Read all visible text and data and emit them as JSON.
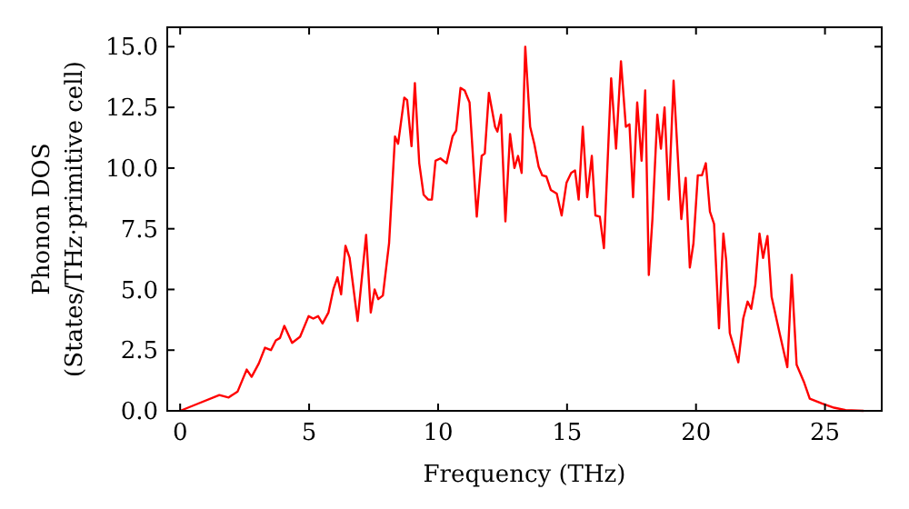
{
  "chart_data": {
    "type": "line",
    "xlabel": "Frequency (THz)",
    "ylabel": "Phonon DOS\n(States/THz·primitive cell)",
    "xlim": [
      -0.5,
      27.2
    ],
    "ylim": [
      0,
      15.8
    ],
    "xticks": [
      0,
      5,
      10,
      15,
      20,
      25
    ],
    "yticks": [
      {
        "value": 0,
        "label": "0.0"
      },
      {
        "value": 2.5,
        "label": "2.5"
      },
      {
        "value": 5,
        "label": "5.0"
      },
      {
        "value": 7.5,
        "label": "7.5"
      },
      {
        "value": 10,
        "label": "10.0"
      },
      {
        "value": 12.5,
        "label": "12.5"
      },
      {
        "value": 15,
        "label": "15.0"
      }
    ],
    "marker": "none",
    "line_style": "solid",
    "series": [
      {
        "color": "#ff0000",
        "x": [
          0,
          0.7,
          1.52,
          1.88,
          2.23,
          2.58,
          2.77,
          3.05,
          3.29,
          3.52,
          3.71,
          3.87,
          4.04,
          4.34,
          4.65,
          4.98,
          5.16,
          5.35,
          5.52,
          5.75,
          5.94,
          6.1,
          6.24,
          6.41,
          6.57,
          6.88,
          7.21,
          7.39,
          7.54,
          7.68,
          7.86,
          8.1,
          8.33,
          8.45,
          8.69,
          8.8,
          8.97,
          9.1,
          9.27,
          9.44,
          9.62,
          9.76,
          9.9,
          10.09,
          10.33,
          10.56,
          10.7,
          10.87,
          11.03,
          11.22,
          11.5,
          11.69,
          11.81,
          11.97,
          12.21,
          12.3,
          12.44,
          12.61,
          12.79,
          12.96,
          13.1,
          13.24,
          13.38,
          13.57,
          13.73,
          13.9,
          14.04,
          14.2,
          14.37,
          14.6,
          14.79,
          14.98,
          15.16,
          15.31,
          15.45,
          15.61,
          15.78,
          15.96,
          16.1,
          16.27,
          16.43,
          16.71,
          16.9,
          17.09,
          17.28,
          17.42,
          17.56,
          17.72,
          17.89,
          18.03,
          18.17,
          18.31,
          18.5,
          18.64,
          18.78,
          18.94,
          19.13,
          19.43,
          19.6,
          19.76,
          19.9,
          20.07,
          20.23,
          20.38,
          20.54,
          20.7,
          20.89,
          21.06,
          21.17,
          21.31,
          21.64,
          21.83,
          22.0,
          22.14,
          22.3,
          22.46,
          22.6,
          22.77,
          22.93,
          23.24,
          23.54,
          23.71,
          23.9,
          24.18,
          24.41,
          24.88,
          25.35,
          25.8,
          26.5
        ],
        "values": [
          0,
          0.3,
          0.65,
          0.55,
          0.8,
          1.7,
          1.4,
          1.95,
          2.6,
          2.5,
          2.9,
          3.0,
          3.5,
          2.8,
          3.05,
          3.9,
          3.8,
          3.9,
          3.6,
          4.05,
          5.0,
          5.5,
          4.8,
          6.8,
          6.3,
          3.7,
          7.25,
          4.05,
          5.0,
          4.6,
          4.75,
          6.9,
          11.3,
          11.0,
          12.9,
          12.8,
          10.9,
          13.5,
          10.2,
          8.9,
          8.7,
          8.7,
          10.3,
          10.4,
          10.2,
          11.3,
          11.55,
          13.3,
          13.2,
          12.7,
          8.0,
          10.5,
          10.6,
          13.1,
          11.7,
          11.5,
          12.2,
          7.8,
          11.4,
          10.0,
          10.5,
          9.8,
          15.0,
          11.7,
          11.0,
          10.05,
          9.7,
          9.65,
          9.1,
          8.95,
          8.05,
          9.4,
          9.8,
          9.9,
          8.7,
          11.7,
          8.8,
          10.5,
          8.05,
          8.0,
          6.7,
          13.7,
          10.8,
          14.4,
          11.7,
          11.8,
          8.8,
          12.7,
          10.3,
          13.2,
          5.6,
          7.9,
          12.2,
          10.8,
          12.5,
          8.7,
          13.6,
          7.9,
          9.6,
          5.9,
          6.9,
          9.7,
          9.7,
          10.2,
          8.2,
          7.7,
          3.4,
          7.3,
          6.2,
          3.2,
          2.0,
          3.8,
          4.5,
          4.2,
          5.2,
          7.3,
          6.3,
          7.2,
          4.7,
          3.2,
          1.8,
          5.6,
          1.9,
          1.2,
          0.5,
          0.3,
          0.13,
          0.03,
          0
        ]
      }
    ]
  }
}
